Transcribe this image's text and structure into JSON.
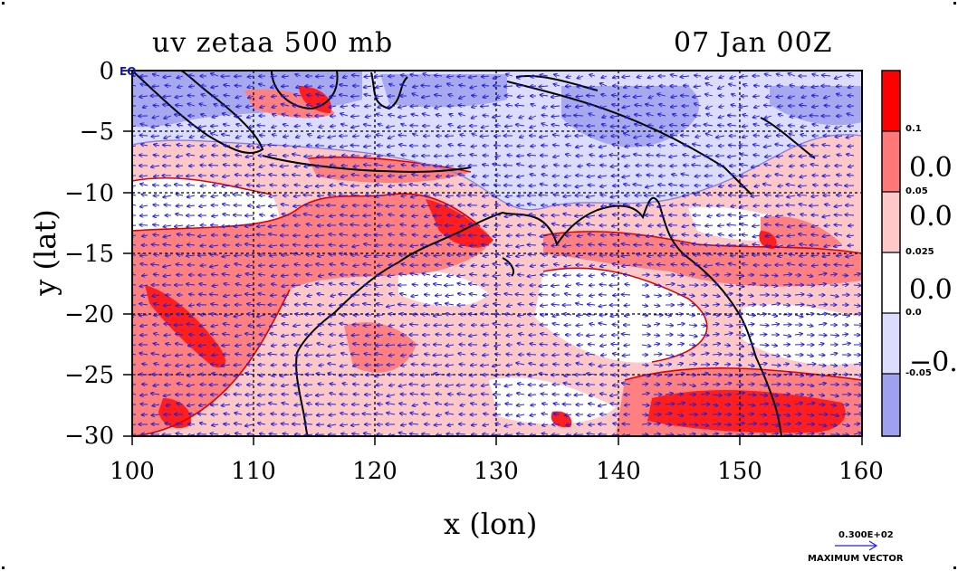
{
  "title": {
    "left": "uv zetaa 500 mb",
    "right": "07 Jan 00Z"
  },
  "axes": {
    "xlabel": "x (lon)",
    "ylabel": "y (lat)",
    "xticks": [
      "100",
      "110",
      "120",
      "130",
      "140",
      "150",
      "160"
    ],
    "yticks": [
      "0",
      "−5",
      "−10",
      "−15",
      "−20",
      "−25",
      "−30"
    ],
    "xlim": [
      100,
      160
    ],
    "ylim": [
      -30,
      0
    ],
    "grid": true
  },
  "inline_label": "EQ",
  "colorbar": {
    "small_labels": [
      "0.1",
      "0.05",
      "0.025",
      "0.0",
      "-0.05"
    ],
    "big_labels": [
      "0.0",
      "0.0",
      "0.0",
      "−0."
    ],
    "colors": [
      "#ff0000",
      "#ff7878",
      "#ffc8c8",
      "#ffffff",
      "#dcdcff",
      "#a0a0f0"
    ]
  },
  "vector_key": {
    "value": "0.300E+02",
    "label": "MAXIMUM VECTOR"
  },
  "map_colors": {
    "strong_positive": "#ff1e1e",
    "positive": "#ff8080",
    "weak_positive": "#ffc8c8",
    "neutral": "#ffffff",
    "weak_negative": "#dcdcff",
    "negative": "#a8a8f0",
    "vectors": "#2020e0",
    "coast": "#000000"
  },
  "icons": [
    "vector-arrow-icon"
  ]
}
